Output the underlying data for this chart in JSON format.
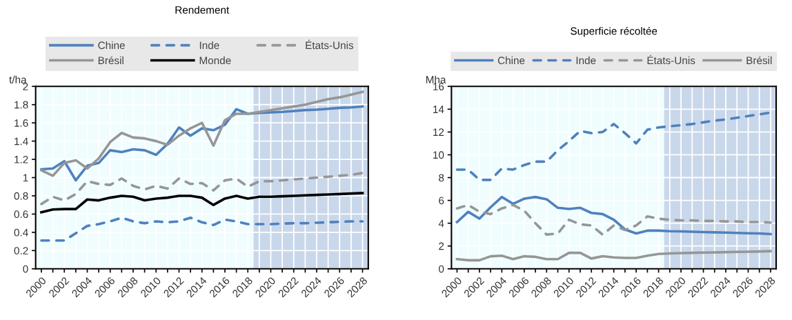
{
  "chart_data": [
    {
      "type": "line",
      "title": "Rendement",
      "ylabel": "t/ha",
      "x": [
        2000,
        2001,
        2002,
        2003,
        2004,
        2005,
        2006,
        2007,
        2008,
        2009,
        2010,
        2011,
        2012,
        2013,
        2014,
        2015,
        2016,
        2017,
        2018,
        2019,
        2020,
        2021,
        2022,
        2023,
        2024,
        2025,
        2026,
        2027,
        2028
      ],
      "series": [
        {
          "name": "Chine",
          "color": "#4f81bd",
          "line_style": "solid",
          "values": [
            1.09,
            1.1,
            1.18,
            0.97,
            1.13,
            1.16,
            1.3,
            1.28,
            1.31,
            1.3,
            1.25,
            1.37,
            1.55,
            1.46,
            1.54,
            1.52,
            1.58,
            1.75,
            1.7,
            1.71,
            1.715,
            1.72,
            1.73,
            1.74,
            1.745,
            1.755,
            1.765,
            1.77,
            1.78
          ]
        },
        {
          "name": "Inde",
          "color": "#4f81bd",
          "line_style": "dashed",
          "values": [
            0.31,
            0.31,
            0.31,
            0.39,
            0.47,
            0.49,
            0.52,
            0.56,
            0.52,
            0.5,
            0.52,
            0.51,
            0.52,
            0.56,
            0.51,
            0.48,
            0.54,
            0.52,
            0.49,
            0.49,
            0.49,
            0.495,
            0.5,
            0.5,
            0.505,
            0.51,
            0.515,
            0.52,
            0.52
          ]
        },
        {
          "name": "États-Unis",
          "color": "#969696",
          "line_style": "dashed",
          "values": [
            0.71,
            0.79,
            0.75,
            0.82,
            0.96,
            0.93,
            0.92,
            0.99,
            0.91,
            0.87,
            0.91,
            0.88,
            0.99,
            0.93,
            0.94,
            0.86,
            0.97,
            0.99,
            0.9,
            0.96,
            0.96,
            0.97,
            0.98,
            0.99,
            1.0,
            1.01,
            1.02,
            1.03,
            1.05
          ]
        },
        {
          "name": "Brésil",
          "color": "#969696",
          "line_style": "solid",
          "values": [
            1.08,
            1.02,
            1.16,
            1.19,
            1.1,
            1.21,
            1.39,
            1.49,
            1.44,
            1.43,
            1.4,
            1.36,
            1.46,
            1.54,
            1.6,
            1.35,
            1.63,
            1.7,
            1.7,
            1.72,
            1.74,
            1.76,
            1.78,
            1.8,
            1.83,
            1.86,
            1.88,
            1.91,
            1.94
          ]
        },
        {
          "name": "Monde",
          "color": "#000000",
          "line_style": "solid",
          "values": [
            0.62,
            0.65,
            0.655,
            0.655,
            0.76,
            0.75,
            0.78,
            0.8,
            0.79,
            0.75,
            0.77,
            0.78,
            0.8,
            0.8,
            0.78,
            0.7,
            0.77,
            0.8,
            0.77,
            0.79,
            0.79,
            0.795,
            0.8,
            0.805,
            0.81,
            0.815,
            0.82,
            0.825,
            0.83
          ]
        }
      ],
      "xlim": [
        1999.5,
        2028.5
      ],
      "xticks": [
        2000,
        {
          "value": 2001,
          "label": null
        },
        2002,
        {
          "value": 2003,
          "label": null
        },
        2004,
        {
          "value": 2005,
          "label": null
        },
        2006,
        {
          "value": 2007,
          "label": null
        },
        2008,
        {
          "value": 2009,
          "label": null
        },
        2010,
        {
          "value": 2011,
          "label": null
        },
        2012,
        {
          "value": 2013,
          "label": null
        },
        2014,
        {
          "value": 2015,
          "label": null
        },
        2016,
        {
          "value": 2017,
          "label": null
        },
        2018,
        {
          "value": 2019,
          "label": null
        },
        2020,
        {
          "value": 2021,
          "label": null
        },
        2022,
        {
          "value": 2023,
          "label": null
        },
        2024,
        {
          "value": 2025,
          "label": null
        },
        2026,
        {
          "value": 2027,
          "label": null
        },
        2028
      ],
      "ylim": [
        0,
        2
      ],
      "yticks": [
        0,
        0.2,
        0.4,
        0.6,
        0.8,
        1,
        1.2,
        1.4,
        1.6,
        1.8,
        2
      ],
      "bands": [
        {
          "axis": "x",
          "from": 2018.5,
          "to": 2028.5,
          "color": "#c9d7ea"
        }
      ],
      "grid": true,
      "legend": "top",
      "marker": "none"
    },
    {
      "type": "line",
      "title": "Superficie récoltée",
      "ylabel": "Mha",
      "x": [
        2000,
        2001,
        2002,
        2003,
        2004,
        2005,
        2006,
        2007,
        2008,
        2009,
        2010,
        2011,
        2012,
        2013,
        2014,
        2015,
        2016,
        2017,
        2018,
        2019,
        2020,
        2021,
        2022,
        2023,
        2024,
        2025,
        2026,
        2027,
        2028
      ],
      "series": [
        {
          "name": "Chine",
          "color": "#4f81bd",
          "line_style": "solid",
          "values": [
            4.1,
            5.0,
            4.4,
            5.4,
            6.3,
            5.7,
            6.15,
            6.3,
            6.1,
            5.35,
            5.25,
            5.35,
            4.9,
            4.8,
            4.3,
            3.45,
            3.1,
            3.35,
            3.35,
            3.3,
            3.28,
            3.25,
            3.22,
            3.2,
            3.18,
            3.15,
            3.12,
            3.1,
            3.05
          ]
        },
        {
          "name": "Inde",
          "color": "#4f81bd",
          "line_style": "dashed",
          "values": [
            8.7,
            8.7,
            7.8,
            7.8,
            8.8,
            8.7,
            9.1,
            9.4,
            9.4,
            10.4,
            11.2,
            12.1,
            11.9,
            12.0,
            12.7,
            11.9,
            11.0,
            12.2,
            12.4,
            12.5,
            12.6,
            12.7,
            12.85,
            13.0,
            13.1,
            13.25,
            13.4,
            13.55,
            13.7
          ]
        },
        {
          "name": "États-Unis",
          "color": "#969696",
          "line_style": "dashed",
          "values": [
            5.3,
            5.6,
            5.0,
            4.8,
            5.3,
            5.6,
            5.1,
            4.0,
            3.0,
            3.1,
            4.3,
            3.9,
            3.8,
            3.0,
            3.8,
            3.4,
            3.8,
            4.6,
            4.4,
            4.3,
            4.25,
            4.25,
            4.2,
            4.2,
            4.15,
            4.15,
            4.1,
            4.1,
            4.05
          ]
        },
        {
          "name": "Brésil",
          "color": "#969696",
          "line_style": "solid",
          "values": [
            0.85,
            0.75,
            0.75,
            1.1,
            1.15,
            0.85,
            1.1,
            1.05,
            0.85,
            0.85,
            1.4,
            1.4,
            0.9,
            1.1,
            1.0,
            0.95,
            0.95,
            1.15,
            1.3,
            1.35,
            1.38,
            1.4,
            1.42,
            1.44,
            1.46,
            1.48,
            1.5,
            1.52,
            1.55
          ]
        }
      ],
      "xlim": [
        1999.5,
        2028.5
      ],
      "xticks": [
        2000,
        {
          "value": 2001,
          "label": null
        },
        2002,
        {
          "value": 2003,
          "label": null
        },
        2004,
        {
          "value": 2005,
          "label": null
        },
        2006,
        {
          "value": 2007,
          "label": null
        },
        2008,
        {
          "value": 2009,
          "label": null
        },
        2010,
        {
          "value": 2011,
          "label": null
        },
        2012,
        {
          "value": 2013,
          "label": null
        },
        2014,
        {
          "value": 2015,
          "label": null
        },
        2016,
        {
          "value": 2017,
          "label": null
        },
        2018,
        {
          "value": 2019,
          "label": null
        },
        2020,
        {
          "value": 2021,
          "label": null
        },
        2022,
        {
          "value": 2023,
          "label": null
        },
        2024,
        {
          "value": 2025,
          "label": null
        },
        2026,
        {
          "value": 2027,
          "label": null
        },
        2028
      ],
      "ylim": [
        0,
        16
      ],
      "yticks": [
        0,
        2,
        4,
        6,
        8,
        10,
        12,
        14,
        16
      ],
      "bands": [
        {
          "axis": "x",
          "from": 2018.5,
          "to": 2028.5,
          "color": "#c9d7ea"
        }
      ],
      "grid": true,
      "legend": "top",
      "marker": "none"
    }
  ]
}
